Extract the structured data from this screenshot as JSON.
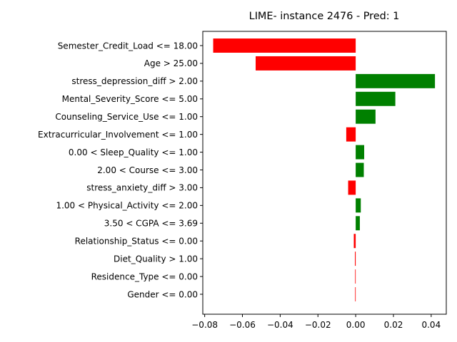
{
  "chart_data": {
    "type": "bar",
    "orientation": "horizontal",
    "title": "LIME- instance 2476 - Pred: 1",
    "xlabel": "",
    "ylabel": "",
    "xlim": [
      -0.081,
      0.048
    ],
    "xticks": [
      -0.08,
      -0.06,
      -0.04,
      -0.02,
      0.0,
      0.02,
      0.04
    ],
    "xtick_labels": [
      "−0.08",
      "−0.06",
      "−0.04",
      "−0.02",
      "0.00",
      "0.02",
      "0.04"
    ],
    "grid": false,
    "legend": "none",
    "colors": {
      "positive": "#008000",
      "negative": "#ff0000"
    },
    "categories": [
      "Semester_Credit_Load <= 18.00",
      "Age > 25.00",
      "stress_depression_diff > 2.00",
      "Mental_Severity_Score <= 5.00",
      "Counseling_Service_Use <= 1.00",
      "Extracurricular_Involvement <= 1.00",
      "0.00 < Sleep_Quality <= 1.00",
      "2.00 < Course <= 3.00",
      "stress_anxiety_diff > 3.00",
      "1.00 < Physical_Activity <= 2.00",
      "3.50 < CGPA <= 3.69",
      "Relationship_Status <= 0.00",
      "Diet_Quality > 1.00",
      "Residence_Type <= 0.00",
      "Gender <= 0.00"
    ],
    "values": [
      -0.0755,
      -0.053,
      0.042,
      0.021,
      0.0105,
      -0.005,
      0.0045,
      0.0043,
      -0.004,
      0.0027,
      0.0022,
      -0.001,
      -0.0004,
      -0.0003,
      -0.0003
    ]
  }
}
